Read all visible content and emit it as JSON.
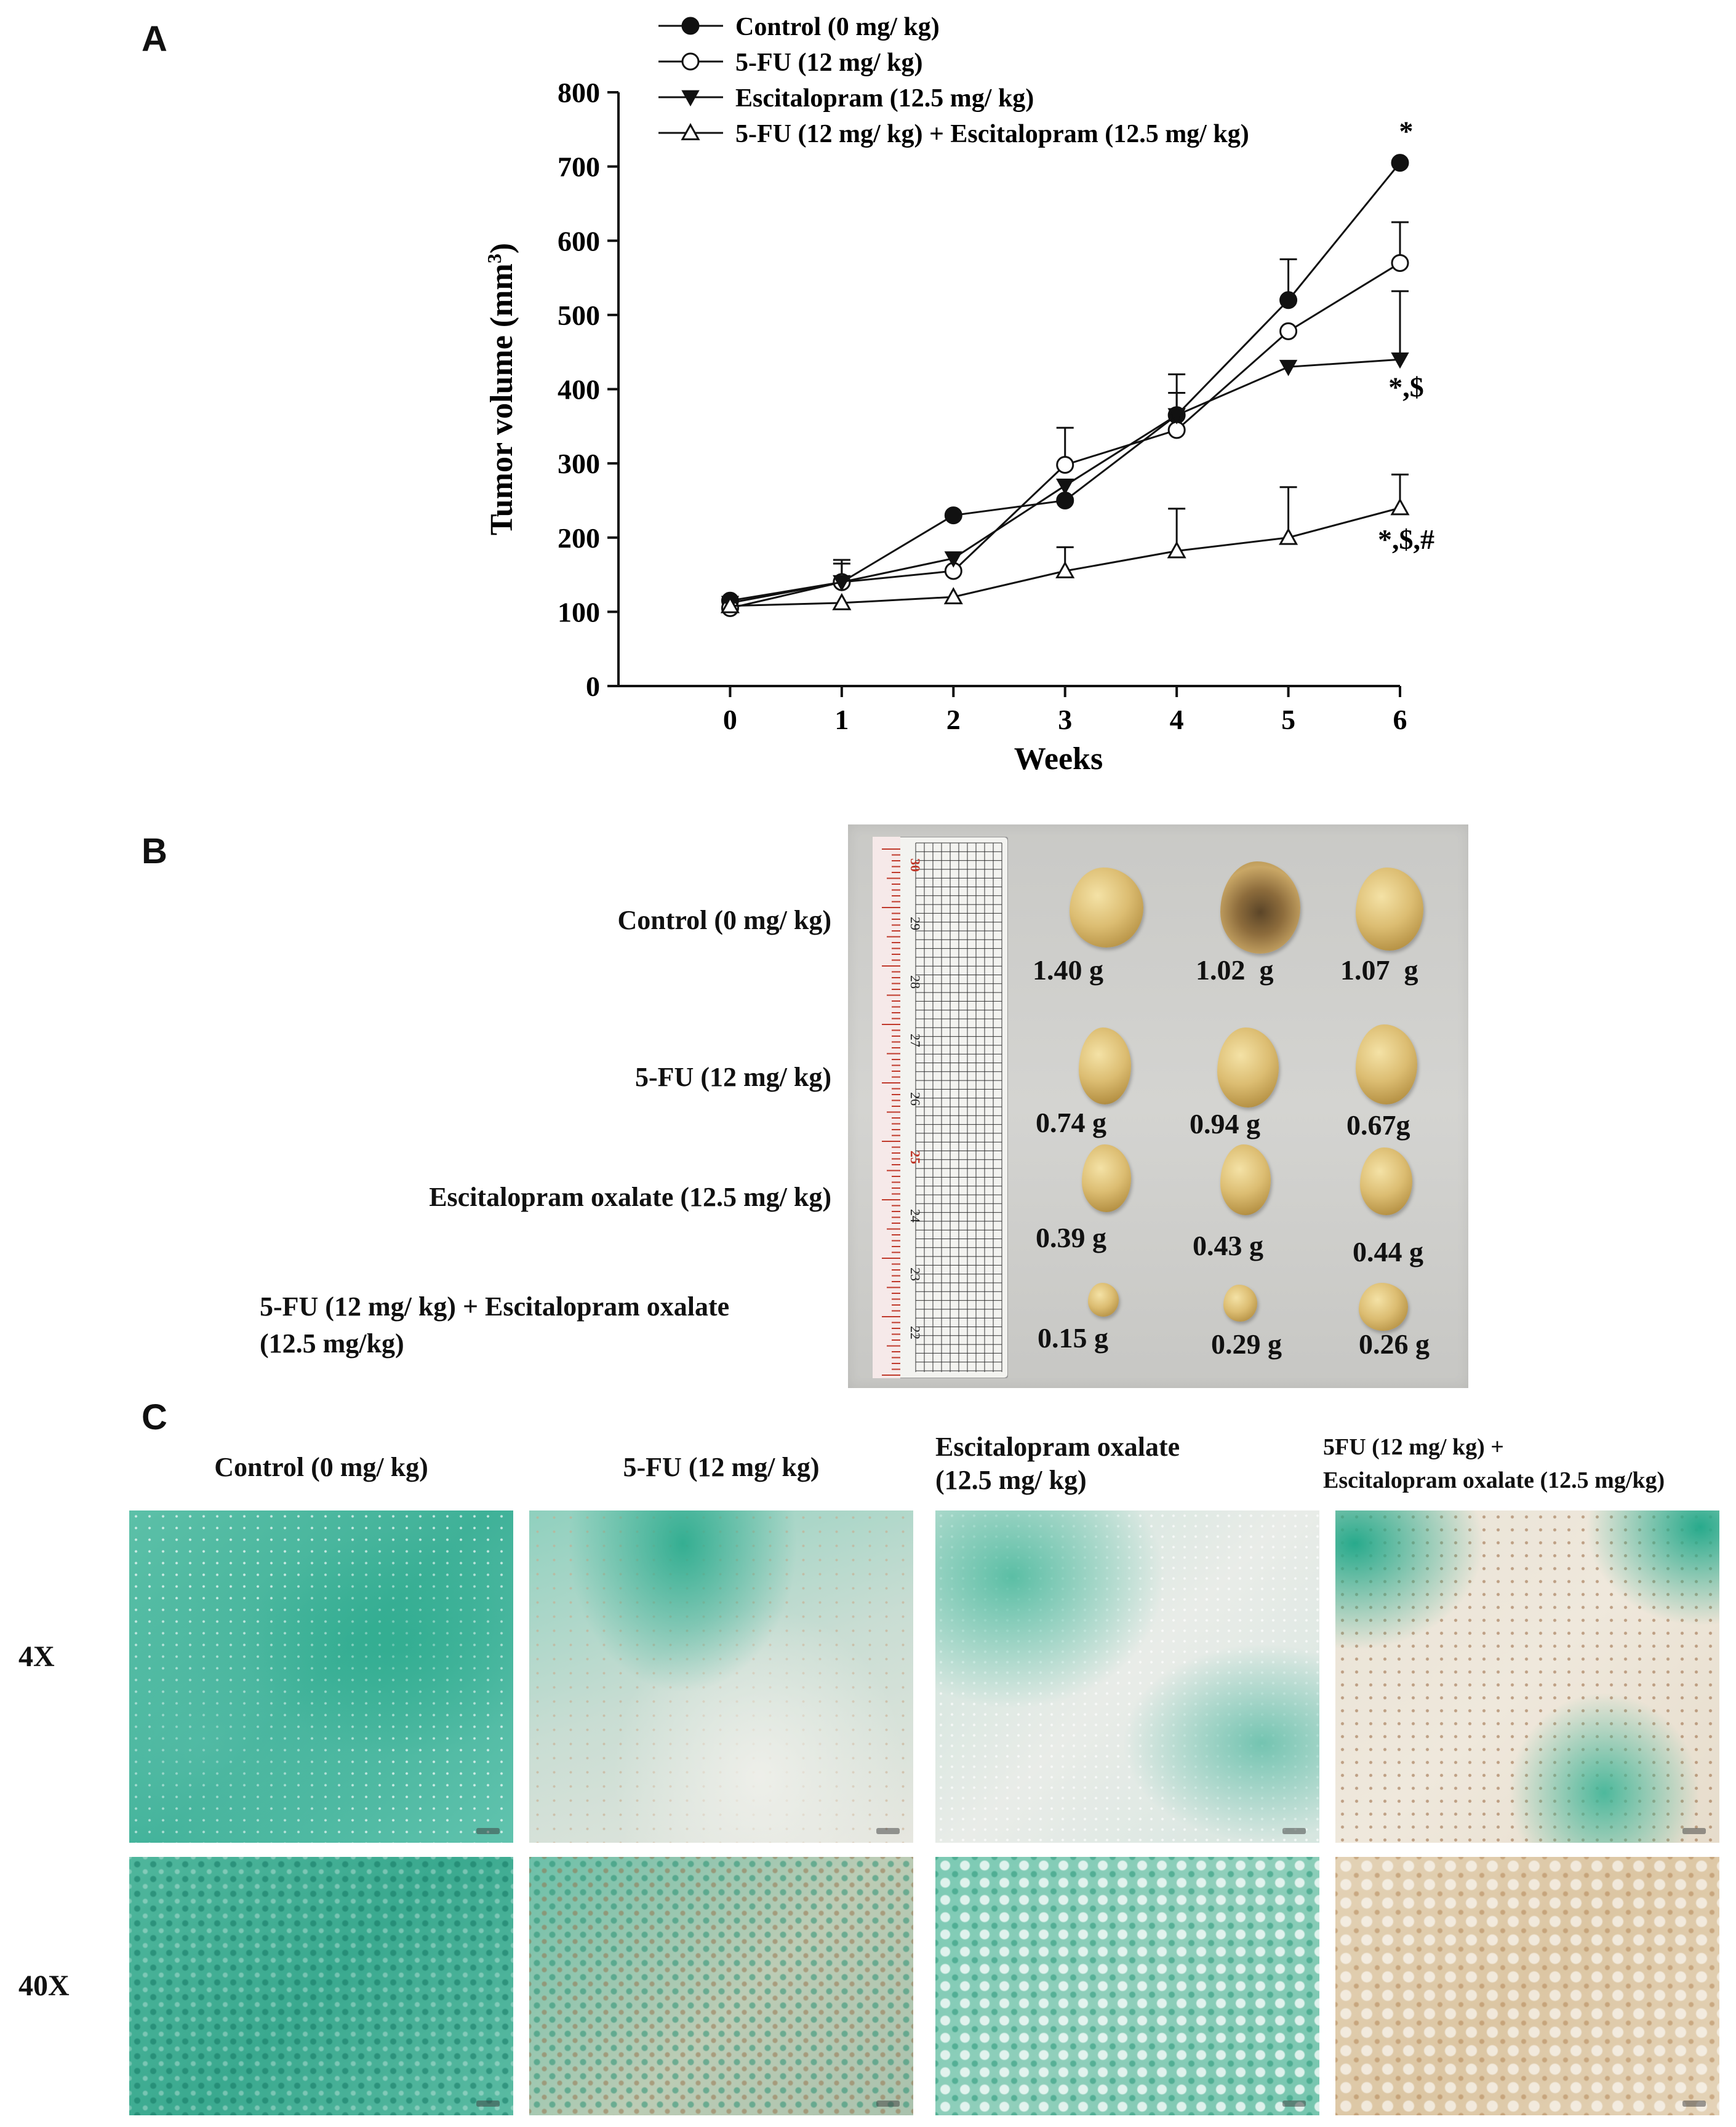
{
  "panels": {
    "a": "A",
    "b": "B",
    "c": "C"
  },
  "chart_data": {
    "type": "line",
    "xlabel": "Weeks",
    "ylabel": "Tumor volume (mm",
    "ylabel_sup": "3",
    "ylabel_close": ")",
    "x": [
      0,
      1,
      2,
      3,
      4,
      5,
      6
    ],
    "xlim": [
      -1,
      6
    ],
    "ylim": [
      0,
      800
    ],
    "xticks": [
      0,
      1,
      2,
      3,
      4,
      5,
      6
    ],
    "yticks": [
      0,
      100,
      200,
      300,
      400,
      500,
      600,
      700,
      800
    ],
    "legend_position": "top",
    "series": [
      {
        "name": "Control  (0 mg/ kg)",
        "marker": "circle-filled",
        "values": [
          115,
          140,
          230,
          250,
          365,
          520,
          705
        ],
        "errors": [
          0,
          30,
          0,
          0,
          55,
          55,
          0
        ]
      },
      {
        "name": "5-FU (12 mg/ kg)",
        "marker": "circle-open",
        "values": [
          105,
          140,
          155,
          298,
          345,
          478,
          570
        ],
        "errors": [
          0,
          25,
          0,
          50,
          50,
          0,
          55
        ]
      },
      {
        "name": "Escitalopram (12.5 mg/ kg)",
        "marker": "triangle-down-filled",
        "values": [
          112,
          140,
          172,
          270,
          365,
          430,
          440
        ],
        "errors": [
          0,
          0,
          0,
          0,
          0,
          0,
          92
        ]
      },
      {
        "name": "5-FU (12 mg/ kg) + Escitalopram (12.5 mg/ kg)",
        "marker": "triangle-up-open",
        "values": [
          108,
          112,
          120,
          155,
          182,
          200,
          240
        ],
        "errors": [
          0,
          0,
          0,
          32,
          57,
          68,
          45
        ]
      }
    ],
    "annotations": [
      {
        "text": "*",
        "x": 6,
        "y": 745
      },
      {
        "text": "*,$",
        "x": 6,
        "y": 400
      },
      {
        "text": "*,$,#",
        "x": 6,
        "y": 195
      }
    ]
  },
  "panel_b": {
    "groups": [
      {
        "label": "Control (0 mg/ kg)",
        "weights": [
          "1.40 g",
          "1.02  g",
          "1.07  g"
        ]
      },
      {
        "label": "5-FU (12 mg/ kg)",
        "weights": [
          "0.74 g",
          "0.94 g",
          "0.67g"
        ]
      },
      {
        "label": "Escitalopram oxalate (12.5 mg/ kg)",
        "weights": [
          "0.39 g",
          "0.43 g",
          "0.44 g"
        ]
      },
      {
        "label_line1": "5-FU (12 mg/ kg) + Escitalopram oxalate",
        "label_line2": "(12.5 mg/kg)",
        "weights": [
          "0.15 g",
          "0.29 g",
          "0.26 g"
        ]
      }
    ],
    "ruler_numbers": [
      "30",
      "29",
      "28",
      "27",
      "26",
      "25",
      "24",
      "23",
      "22",
      "21"
    ]
  },
  "panel_c": {
    "columns": [
      {
        "line1": "Control (0 mg/ kg)",
        "line2": ""
      },
      {
        "line1": "5-FU (12 mg/ kg)",
        "line2": ""
      },
      {
        "line1": "Escitalopram oxalate",
        "line2": "(12.5 mg/ kg)"
      },
      {
        "line1": "5FU (12 mg/ kg) +",
        "line2": "Escitalopram oxalate (12.5 mg/kg)"
      }
    ],
    "magnifications": [
      "4X",
      "40X"
    ]
  }
}
